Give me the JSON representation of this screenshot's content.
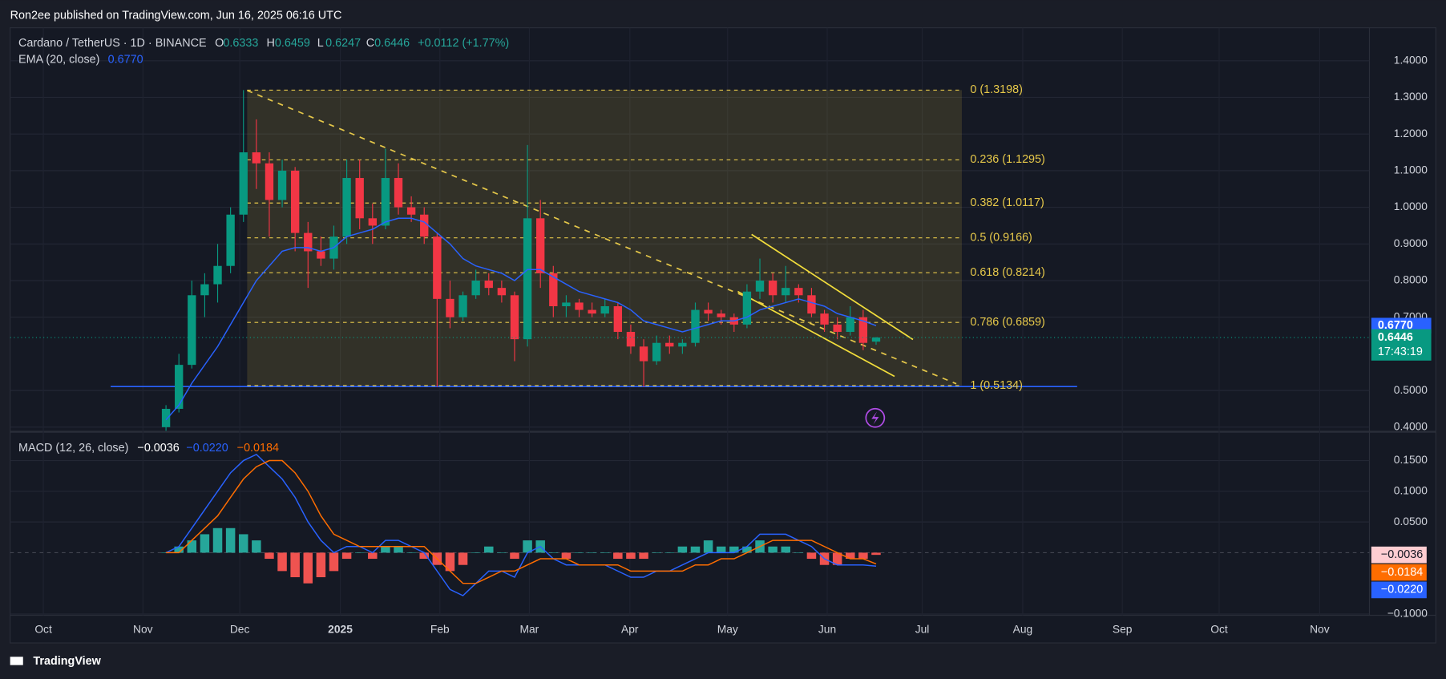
{
  "header": {
    "publisher": "Ron2ee published on TradingView.com, Jun 16, 2025 06:16 UTC"
  },
  "chart_data": {
    "type": "candlestick",
    "title": "Cardano / TetherUS · 1D · BINANCE",
    "ohlc_legend": [
      {
        "key": "O",
        "value": "0.6333"
      },
      {
        "key": "H",
        "value": "0.6459"
      },
      {
        "key": "L",
        "value": "0.6247"
      },
      {
        "key": "C",
        "value": "0.6446"
      }
    ],
    "change": "+0.0112 (+1.77%)",
    "ema_legend": {
      "name": "EMA (20, close)",
      "value": "0.6770"
    },
    "up_color": "#089981",
    "down_color": "#f23645",
    "open": [
      0.4,
      0.45,
      0.57,
      0.76,
      0.79,
      0.84,
      0.98,
      1.15,
      1.12,
      1.02,
      1.1,
      0.93,
      0.88,
      0.86,
      0.92,
      1.08,
      0.97,
      0.95,
      1.08,
      1.0,
      0.98,
      0.92,
      0.75,
      0.7,
      0.76,
      0.8,
      0.78,
      0.76,
      0.64,
      0.97,
      0.82,
      0.73,
      0.74,
      0.72,
      0.71,
      0.73,
      0.66,
      0.62,
      0.58,
      0.63,
      0.62,
      0.63,
      0.72,
      0.71,
      0.7,
      0.68,
      0.77,
      0.8,
      0.76,
      0.78,
      0.76,
      0.71,
      0.68,
      0.66,
      0.7,
      0.6333
    ],
    "high": [
      0.46,
      0.6,
      0.8,
      0.82,
      0.9,
      1.0,
      1.32,
      1.24,
      1.15,
      1.13,
      1.11,
      0.96,
      0.92,
      0.95,
      1.13,
      1.13,
      1.01,
      1.16,
      1.12,
      1.03,
      1.0,
      0.93,
      0.8,
      0.77,
      0.83,
      0.82,
      0.8,
      0.77,
      1.17,
      1.02,
      0.84,
      0.76,
      0.75,
      0.74,
      0.75,
      0.74,
      0.68,
      0.64,
      0.65,
      0.65,
      0.64,
      0.74,
      0.74,
      0.72,
      0.71,
      0.79,
      0.86,
      0.82,
      0.84,
      0.79,
      0.78,
      0.72,
      0.7,
      0.73,
      0.72,
      0.6459
    ],
    "low": [
      0.39,
      0.44,
      0.56,
      0.7,
      0.74,
      0.82,
      0.96,
      1.05,
      0.92,
      1.0,
      0.88,
      0.78,
      0.84,
      0.83,
      0.9,
      0.94,
      0.9,
      0.94,
      0.98,
      0.96,
      0.9,
      0.51,
      0.67,
      0.69,
      0.75,
      0.76,
      0.74,
      0.58,
      0.62,
      0.78,
      0.7,
      0.7,
      0.7,
      0.7,
      0.7,
      0.64,
      0.6,
      0.51,
      0.57,
      0.6,
      0.6,
      0.62,
      0.69,
      0.68,
      0.66,
      0.67,
      0.75,
      0.74,
      0.74,
      0.74,
      0.7,
      0.66,
      0.64,
      0.65,
      0.61,
      0.6247
    ],
    "close": [
      0.45,
      0.57,
      0.76,
      0.79,
      0.84,
      0.98,
      1.15,
      1.12,
      1.02,
      1.1,
      0.93,
      0.88,
      0.86,
      0.92,
      1.08,
      0.97,
      0.95,
      1.08,
      1.0,
      0.98,
      0.92,
      0.75,
      0.7,
      0.76,
      0.8,
      0.78,
      0.76,
      0.64,
      0.97,
      0.82,
      0.73,
      0.74,
      0.72,
      0.71,
      0.73,
      0.66,
      0.62,
      0.58,
      0.63,
      0.62,
      0.63,
      0.72,
      0.71,
      0.7,
      0.68,
      0.77,
      0.8,
      0.76,
      0.78,
      0.76,
      0.71,
      0.68,
      0.66,
      0.7,
      0.63,
      0.6446
    ],
    "ema": {
      "color": "#2962ff",
      "values": [
        0.42,
        0.46,
        0.52,
        0.57,
        0.62,
        0.68,
        0.74,
        0.8,
        0.84,
        0.88,
        0.89,
        0.89,
        0.88,
        0.89,
        0.92,
        0.93,
        0.94,
        0.96,
        0.97,
        0.97,
        0.96,
        0.93,
        0.9,
        0.86,
        0.84,
        0.83,
        0.82,
        0.8,
        0.83,
        0.83,
        0.81,
        0.79,
        0.77,
        0.76,
        0.75,
        0.74,
        0.72,
        0.69,
        0.68,
        0.67,
        0.66,
        0.67,
        0.68,
        0.69,
        0.69,
        0.7,
        0.72,
        0.73,
        0.74,
        0.75,
        0.74,
        0.73,
        0.71,
        0.7,
        0.69,
        0.677
      ]
    },
    "ylim": [
      0.39,
      1.49
    ],
    "yticks": [
      {
        "value": 1.4,
        "label": "1.4000"
      },
      {
        "value": 1.3,
        "label": "1.3000"
      },
      {
        "value": 1.2,
        "label": "1.2000"
      },
      {
        "value": 1.1,
        "label": "1.1000"
      },
      {
        "value": 1.0,
        "label": "1.0000"
      },
      {
        "value": 0.9,
        "label": "0.9000"
      },
      {
        "value": 0.8,
        "label": "0.8000"
      },
      {
        "value": 0.7,
        "label": "0.7000"
      },
      {
        "value": 0.5,
        "label": "0.5000"
      },
      {
        "value": 0.4,
        "label": "0.4000"
      }
    ],
    "fib_color": "#e6c84a",
    "fib_levels": [
      {
        "value": 1.3198,
        "label": "0 (1.3198)"
      },
      {
        "value": 1.1295,
        "label": "0.236 (1.1295)"
      },
      {
        "value": 1.0117,
        "label": "0.382 (1.0117)"
      },
      {
        "value": 0.9166,
        "label": "0.5 (0.9166)"
      },
      {
        "value": 0.8214,
        "label": "0.618 (0.8214)"
      },
      {
        "value": 0.6859,
        "label": "0.786 (0.6859)"
      },
      {
        "value": 0.5134,
        "label": "1 (0.5134)"
      }
    ],
    "ema_price": {
      "value": 0.677,
      "label": "0.6770"
    },
    "last_price": {
      "value": 0.6446,
      "label": "0.6446",
      "countdown": "17:43:19"
    },
    "x_labels": [
      "Oct",
      "Nov",
      "Dec",
      "2025",
      "Feb",
      "Mar",
      "Apr",
      "May",
      "Jun",
      "Jul",
      "Aug",
      "Sep",
      "Oct",
      "Nov"
    ],
    "macd": {
      "title": "MACD (12, 26, close)",
      "legend_values": [
        "−0.0036",
        "−0.0220",
        "−0.0184"
      ],
      "macd_color": "#2962ff",
      "signal_color": "#ff6d00",
      "hist_up": "#26a69a",
      "hist_down": "#ef5350",
      "histogram": [
        0,
        0.01,
        0.02,
        0.03,
        0.04,
        0.04,
        0.03,
        0.02,
        -0.01,
        -0.03,
        -0.04,
        -0.05,
        -0.04,
        -0.03,
        -0.01,
        0,
        -0.01,
        0.01,
        0.01,
        0,
        -0.01,
        -0.02,
        -0.03,
        -0.02,
        0,
        0.01,
        0,
        -0.01,
        0.02,
        0.02,
        0,
        -0.01,
        0,
        0,
        0,
        -0.01,
        -0.01,
        -0.01,
        0,
        0,
        0.01,
        0.01,
        0.02,
        0.01,
        0.01,
        0.01,
        0.02,
        0.01,
        0.01,
        0,
        -0.01,
        -0.02,
        -0.02,
        -0.01,
        -0.01,
        -0.0036
      ],
      "macd": [
        0,
        0.01,
        0.04,
        0.07,
        0.1,
        0.13,
        0.15,
        0.16,
        0.14,
        0.12,
        0.09,
        0.05,
        0.02,
        0,
        0.01,
        0.01,
        0,
        0.02,
        0.02,
        0.01,
        0,
        -0.03,
        -0.06,
        -0.07,
        -0.05,
        -0.03,
        -0.03,
        -0.04,
        0,
        0.01,
        -0.01,
        -0.02,
        -0.02,
        -0.02,
        -0.02,
        -0.03,
        -0.04,
        -0.04,
        -0.03,
        -0.03,
        -0.02,
        -0.01,
        0,
        0,
        0,
        0.01,
        0.03,
        0.03,
        0.03,
        0.02,
        0.01,
        -0.01,
        -0.02,
        -0.02,
        -0.02,
        -0.022
      ],
      "signal": [
        0,
        0,
        0.02,
        0.04,
        0.06,
        0.09,
        0.12,
        0.14,
        0.15,
        0.15,
        0.13,
        0.1,
        0.06,
        0.03,
        0.02,
        0.01,
        0.01,
        0.01,
        0.01,
        0.01,
        0.01,
        -0.01,
        -0.03,
        -0.05,
        -0.05,
        -0.04,
        -0.03,
        -0.03,
        -0.02,
        -0.01,
        -0.01,
        -0.01,
        -0.02,
        -0.02,
        -0.02,
        -0.02,
        -0.03,
        -0.03,
        -0.03,
        -0.03,
        -0.03,
        -0.02,
        -0.02,
        -0.01,
        -0.01,
        0,
        0.01,
        0.02,
        0.02,
        0.02,
        0.02,
        0.01,
        0,
        -0.01,
        -0.01,
        -0.0184
      ],
      "ylim": [
        -0.102,
        0.194
      ],
      "yticks": [
        {
          "value": 0.15,
          "label": "0.1500"
        },
        {
          "value": 0.1,
          "label": "0.1000"
        },
        {
          "value": 0.05,
          "label": "0.0500"
        },
        {
          "value": -0.1,
          "label": "−0.1000"
        }
      ],
      "tags": [
        {
          "value": -0.0036,
          "label": "−0.0036",
          "color": "#ffcdd2",
          "text_color": "#131722"
        },
        {
          "value": -0.0184,
          "label": "−0.0184",
          "color": "#ff6d00",
          "text_color": "#ffffff"
        },
        {
          "value": -0.022,
          "label": "−0.0220",
          "color": "#2962ff",
          "text_color": "#ffffff"
        }
      ]
    }
  },
  "footer": {
    "brand": "TradingView"
  }
}
